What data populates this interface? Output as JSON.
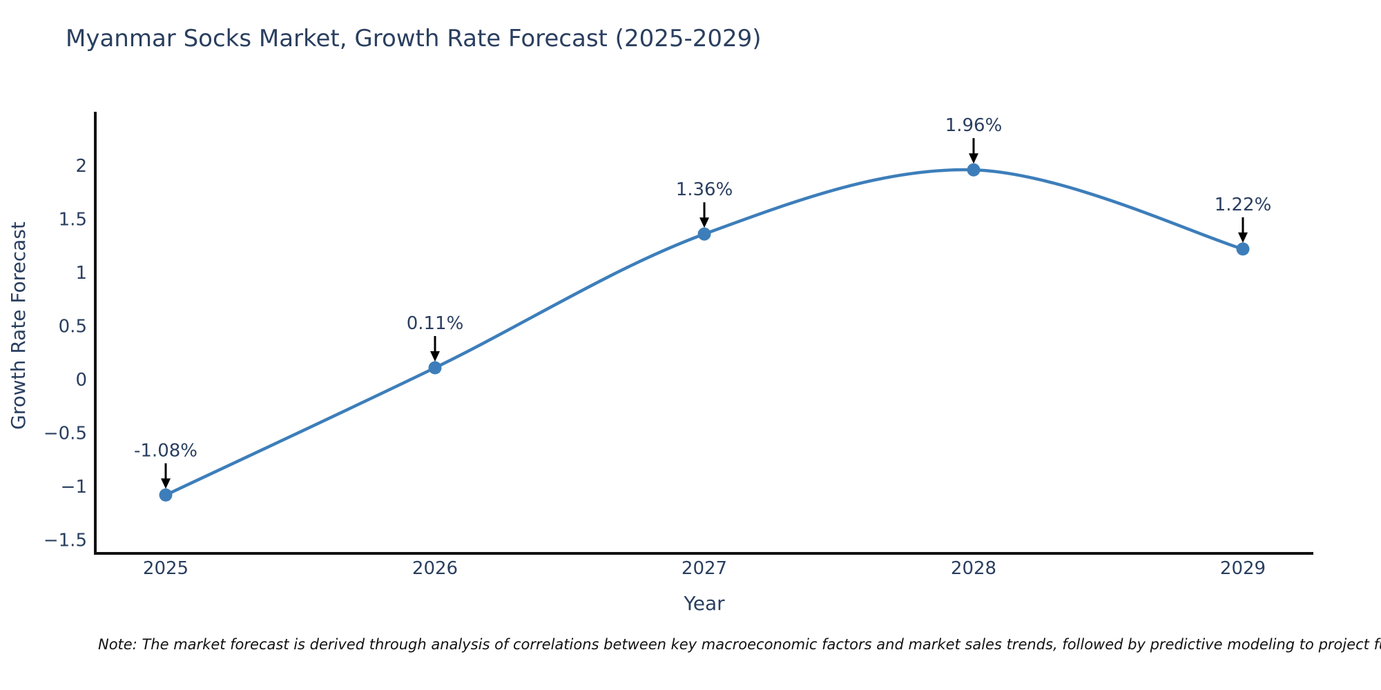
{
  "header": {
    "title": "Myanmar Socks Market, Growth Rate Forecast (2025-2029)"
  },
  "footnote": "Note: The market forecast is derived through analysis of correlations between key macroeconomic factors and market sales trends, followed by predictive modeling to project future sal",
  "chart_data": {
    "type": "line",
    "title": "Myanmar Socks Market, Growth Rate Forecast (2025-2029)",
    "x": [
      2025,
      2026,
      2027,
      2028,
      2029
    ],
    "series": [
      {
        "name": "Growth Rate Forecast",
        "values": [
          -1.08,
          0.11,
          1.36,
          1.96,
          1.22
        ]
      }
    ],
    "point_labels": [
      "-1.08%",
      "0.11%",
      "1.36%",
      "1.96%",
      "1.22%"
    ],
    "xlabel": "Year",
    "ylabel": "Growth Rate Forecast",
    "ylim": [
      -1.63,
      2.5
    ],
    "yticks": [
      2,
      1.5,
      1,
      0.5,
      0,
      -0.5,
      -1,
      -1.5
    ],
    "line_shape": "spline",
    "grid": false,
    "legend": false,
    "colors": {
      "line": "#3d7eba",
      "marker": "#3d7eba",
      "axis": "#111111",
      "text": "#2a3f5f",
      "annotation_arrow": "#000000"
    }
  }
}
